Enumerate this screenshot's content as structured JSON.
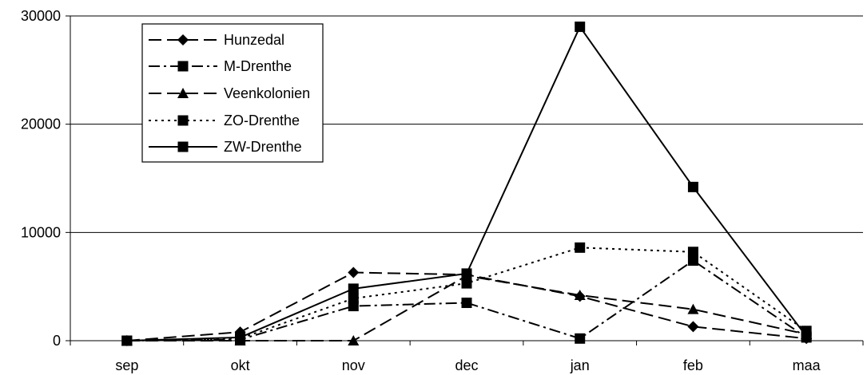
{
  "chart_data": {
    "type": "line",
    "categories": [
      "sep",
      "okt",
      "nov",
      "dec",
      "jan",
      "feb",
      "maa"
    ],
    "ylim": [
      0,
      30000
    ],
    "yticks": [
      "0",
      "10000",
      "20000",
      "30000"
    ],
    "grid": "horizontal",
    "legend_position": "top-left",
    "series": [
      {
        "name": "Hunzedal",
        "marker": "diamond",
        "dash": "long-dash",
        "values": [
          0,
          800,
          6300,
          6100,
          4100,
          1300,
          200
        ]
      },
      {
        "name": "M-Drenthe",
        "marker": "square",
        "dash": "dash-dot",
        "values": [
          0,
          100,
          3200,
          3500,
          200,
          7400,
          300
        ]
      },
      {
        "name": "Veenkolonien",
        "marker": "triangle",
        "dash": "long-dash",
        "values": [
          0,
          0,
          0,
          6000,
          4200,
          2900,
          600
        ]
      },
      {
        "name": "ZO-Drenthe",
        "marker": "square",
        "dash": "dotted",
        "values": [
          0,
          200,
          3900,
          5300,
          8600,
          8200,
          900
        ]
      },
      {
        "name": "ZW-Drenthe",
        "marker": "square",
        "dash": "solid",
        "values": [
          0,
          300,
          4800,
          6200,
          29000,
          14200,
          400
        ]
      }
    ]
  }
}
